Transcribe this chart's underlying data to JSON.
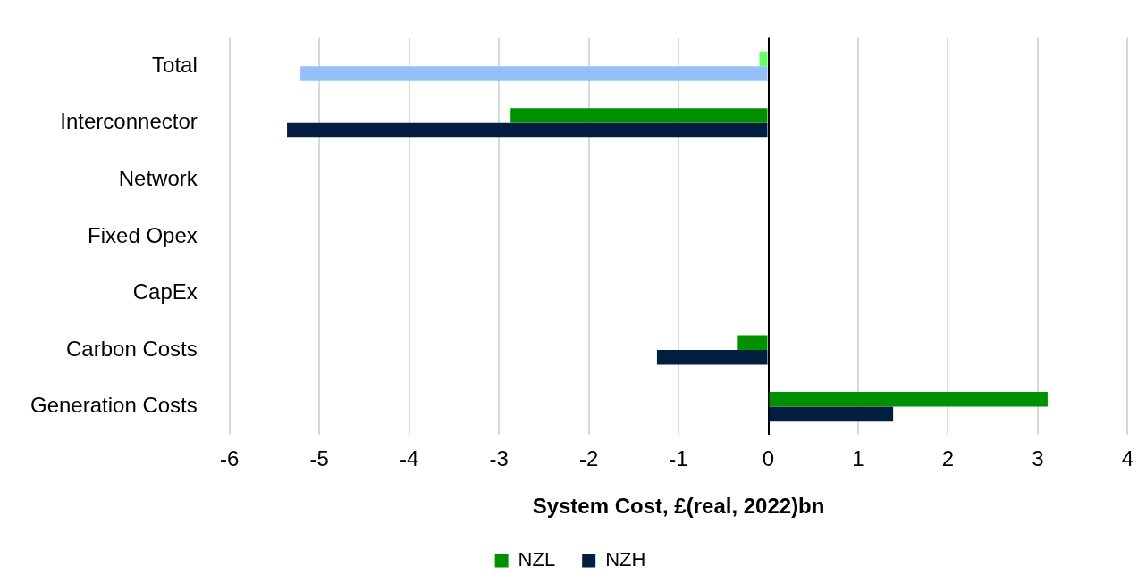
{
  "chart_data": {
    "type": "bar",
    "orientation": "horizontal",
    "xlabel": "System Cost, £(real, 2022)bn",
    "categories": [
      "Total",
      "Interconnector",
      "Network",
      "Fixed Opex",
      "CapEx",
      "Carbon Costs",
      "Generation Costs"
    ],
    "series": [
      {
        "name": "NZL",
        "color": "#009100",
        "colors": [
          "#66ff66",
          "#009100",
          "#009100",
          "#009100",
          "#009100",
          "#009100",
          "#009100"
        ],
        "values": [
          -0.1,
          -2.87,
          0,
          0,
          0,
          -0.34,
          3.11
        ]
      },
      {
        "name": "NZH",
        "color": "#041e42",
        "colors": [
          "#96bff7",
          "#041e42",
          "#041e42",
          "#041e42",
          "#041e42",
          "#041e42",
          "#041e42"
        ],
        "values": [
          -5.21,
          -5.36,
          0,
          0,
          0,
          -1.24,
          1.39
        ]
      }
    ],
    "xlim": [
      -6,
      4
    ],
    "xticks": [
      -6,
      -5,
      -4,
      -3,
      -2,
      -1,
      0,
      1,
      2,
      3,
      4
    ],
    "grid": "x",
    "legend": "bottom"
  }
}
